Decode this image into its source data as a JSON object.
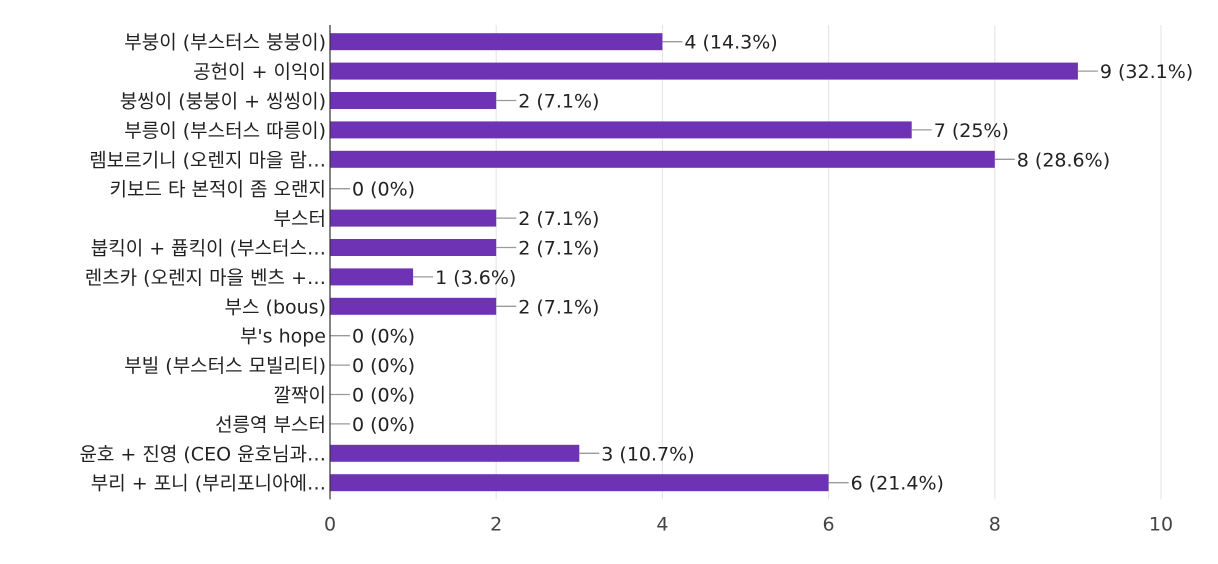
{
  "chart_data": {
    "type": "bar",
    "orientation": "horizontal",
    "bar_color": "#6e33b5",
    "grid": true,
    "xlim": [
      0,
      10
    ],
    "x_ticks": [
      0,
      2,
      4,
      6,
      8,
      10
    ],
    "categories": [
      "부붕이 (부스터스 붕붕이)",
      "공헌이 + 이익이",
      "붕씽이 (붕붕이 + 씽씽이)",
      "부릉이 (부스터스 따릉이)",
      "렘보르기니 (오렌지 마을 람…",
      "키보드 타 본적이 좀 오랜지",
      "부스터",
      "붑킥이 + 퓹킥이 (부스터스…",
      "렌츠카 (오렌지 마을 벤츠 +…",
      "부스 (bous)",
      "부's hope",
      "부빌 (부스터스 모빌리티)",
      "깔짝이",
      "선릉역 부스터",
      "윤호 + 진영 (CEO 윤호님과…",
      "부리 + 포니 (부리포니아에…"
    ],
    "values": [
      4,
      9,
      2,
      7,
      8,
      0,
      2,
      2,
      1,
      2,
      0,
      0,
      0,
      0,
      3,
      6
    ],
    "value_labels": [
      "4 (14.3%)",
      "9 (32.1%)",
      "2 (7.1%)",
      "7 (25%)",
      "8 (28.6%)",
      "0 (0%)",
      "2 (7.1%)",
      "2 (7.1%)",
      "1 (3.6%)",
      "2 (7.1%)",
      "0 (0%)",
      "0 (0%)",
      "0 (0%)",
      "0 (0%)",
      "3 (10.7%)",
      "6 (21.4%)"
    ]
  }
}
